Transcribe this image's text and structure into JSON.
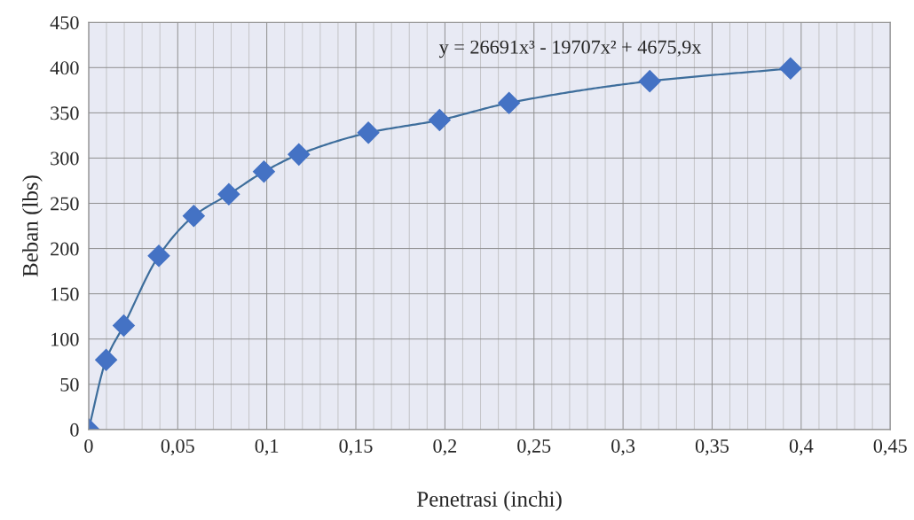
{
  "chart_data": {
    "type": "line",
    "xlabel": "Penetrasi (inchi)",
    "ylabel": "Beban (lbs)",
    "x": [
      0,
      0.0098,
      0.0197,
      0.0394,
      0.059,
      0.0787,
      0.0984,
      0.118,
      0.157,
      0.197,
      0.236,
      0.315,
      0.394
    ],
    "series": [
      {
        "color": "#4472c4",
        "values": [
          0,
          77,
          115,
          192,
          236,
          260,
          285,
          304,
          328,
          342,
          361,
          385,
          399
        ]
      }
    ],
    "marker": "diamond",
    "xlim": [
      0,
      0.45
    ],
    "xticks": [
      0,
      {
        "value": 0.01,
        "label": null
      },
      {
        "value": 0.02,
        "label": null
      },
      {
        "value": 0.03,
        "label": null
      },
      {
        "value": 0.04,
        "label": null
      },
      {
        "value": 0.05,
        "label": "0,05"
      },
      {
        "value": 0.06,
        "label": null
      },
      {
        "value": 0.07,
        "label": null
      },
      {
        "value": 0.08,
        "label": null
      },
      {
        "value": 0.09,
        "label": null
      },
      {
        "value": 0.1,
        "label": "0,1"
      },
      {
        "value": 0.11,
        "label": null
      },
      {
        "value": 0.12,
        "label": null
      },
      {
        "value": 0.13,
        "label": null
      },
      {
        "value": 0.14,
        "label": null
      },
      {
        "value": 0.15,
        "label": "0,15"
      },
      {
        "value": 0.16,
        "label": null
      },
      {
        "value": 0.17,
        "label": null
      },
      {
        "value": 0.18,
        "label": null
      },
      {
        "value": 0.19,
        "label": null
      },
      {
        "value": 0.2,
        "label": "0,2"
      },
      {
        "value": 0.21,
        "label": null
      },
      {
        "value": 0.22,
        "label": null
      },
      {
        "value": 0.23,
        "label": null
      },
      {
        "value": 0.24,
        "label": null
      },
      {
        "value": 0.25,
        "label": "0,25"
      },
      {
        "value": 0.26,
        "label": null
      },
      {
        "value": 0.27,
        "label": null
      },
      {
        "value": 0.28,
        "label": null
      },
      {
        "value": 0.29,
        "label": null
      },
      {
        "value": 0.3,
        "label": "0,3"
      },
      {
        "value": 0.31,
        "label": null
      },
      {
        "value": 0.32,
        "label": null
      },
      {
        "value": 0.33,
        "label": null
      },
      {
        "value": 0.34,
        "label": null
      },
      {
        "value": 0.35,
        "label": "0,35"
      },
      {
        "value": 0.36,
        "label": null
      },
      {
        "value": 0.37,
        "label": null
      },
      {
        "value": 0.38,
        "label": null
      },
      {
        "value": 0.39,
        "label": null
      },
      {
        "value": 0.4,
        "label": "0,4"
      },
      {
        "value": 0.41,
        "label": null
      },
      {
        "value": 0.42,
        "label": null
      },
      {
        "value": 0.43,
        "label": null
      },
      {
        "value": 0.44,
        "label": null
      },
      {
        "value": 0.45,
        "label": "0,45"
      }
    ],
    "ylim": [
      0,
      450
    ],
    "yticks": [
      0,
      50,
      100,
      150,
      200,
      250,
      300,
      350,
      400,
      450
    ],
    "grid": true,
    "legend": false,
    "annotations": [
      "y = 26691x³ - 19707x² + 4675,9x"
    ]
  }
}
